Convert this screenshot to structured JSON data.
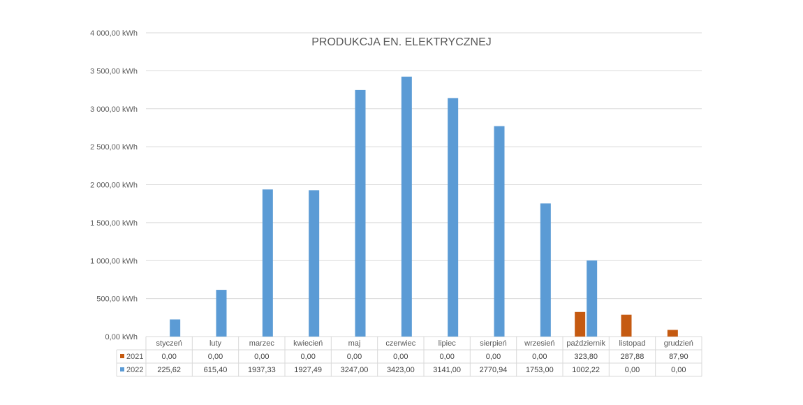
{
  "chart_data": {
    "type": "bar",
    "title": "PRODUKCJA EN. ELEKTRYCZNEJ",
    "categories": [
      "styczeń",
      "luty",
      "marzec",
      "kwiecień",
      "maj",
      "czerwiec",
      "lipiec",
      "sierpień",
      "wrzesień",
      "październik",
      "listopad",
      "grudzień"
    ],
    "series": [
      {
        "name": "2021",
        "color": "#C55A11",
        "values": [
          0,
          0,
          0,
          0,
          0,
          0,
          0,
          0,
          0,
          323.8,
          287.88,
          87.9
        ],
        "labels": [
          "0,00",
          "0,00",
          "0,00",
          "0,00",
          "0,00",
          "0,00",
          "0,00",
          "0,00",
          "0,00",
          "323,80",
          "287,88",
          "87,90"
        ]
      },
      {
        "name": "2022",
        "color": "#5B9BD5",
        "values": [
          225.62,
          615.4,
          1937.33,
          1927.49,
          3247.0,
          3423.0,
          3141.0,
          2770.94,
          1753.0,
          1002.22,
          0,
          0
        ],
        "labels": [
          "225,62",
          "615,40",
          "1937,33",
          "1927,49",
          "3247,00",
          "3423,00",
          "3141,00",
          "2770,94",
          "1753,00",
          "1002,22",
          "0,00",
          "0,00"
        ]
      }
    ],
    "ylim": [
      0,
      4000
    ],
    "yticks": [
      0,
      500,
      1000,
      1500,
      2000,
      2500,
      3000,
      3500,
      4000
    ],
    "yticklabels": [
      "0,00 kWh",
      "500,00 kWh",
      "1 000,00 kWh",
      "1 500,00 kWh",
      "2 000,00 kWh",
      "2 500,00 kWh",
      "3 000,00 kWh",
      "3 500,00 kWh",
      "4 000,00 kWh"
    ],
    "grid": true,
    "legend": "data-table"
  }
}
